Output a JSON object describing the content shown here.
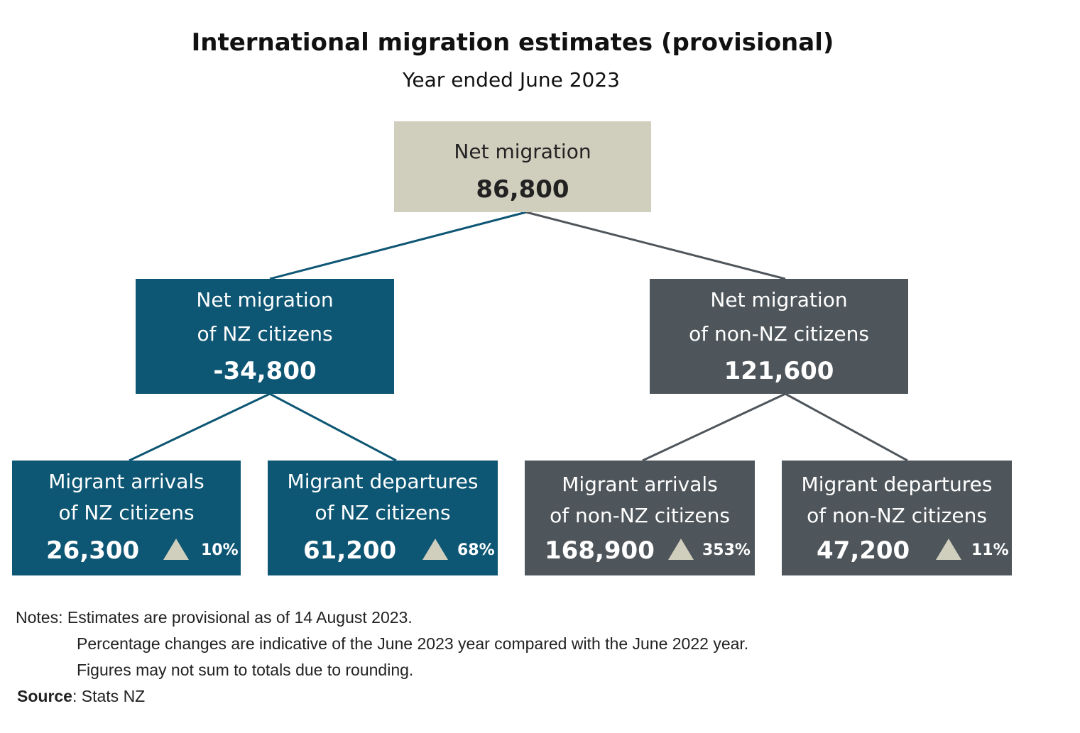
{
  "title": "International migration estimates (provisional)",
  "subtitle": "Year ended June 2023",
  "colors": {
    "root": "#d0cebd",
    "nz": "#0d5674",
    "non_nz": "#4f565b",
    "triangle": "#d0cebd"
  },
  "root": {
    "label": "Net migration",
    "value": "86,800"
  },
  "nz": {
    "label_line1": "Net migration",
    "label_line2": "of NZ citizens",
    "value": "-34,800",
    "arrivals": {
      "line1": "Migrant arrivals",
      "line2": "of NZ citizens",
      "value": "26,300",
      "icon": "up-triangle-icon",
      "change": "10%"
    },
    "departures": {
      "line1": "Migrant departures",
      "line2": "of NZ citizens",
      "value": "61,200",
      "icon": "up-triangle-icon",
      "change": "68%"
    }
  },
  "non_nz": {
    "label_line1": "Net migration",
    "label_line2": "of non-NZ citizens",
    "value": "121,600",
    "arrivals": {
      "line1": "Migrant arrivals",
      "line2": "of non-NZ citizens",
      "value": "168,900",
      "icon": "up-triangle-icon",
      "change": "353%"
    },
    "departures": {
      "line1": "Migrant departures",
      "line2": "of non-NZ citizens",
      "value": "47,200",
      "icon": "up-triangle-icon",
      "change": "11%"
    }
  },
  "notes": {
    "prefix": "Notes:",
    "line1": "Estimates are provisional as of 14 August 2023.",
    "line2": "Percentage changes are indicative of the June 2023 year compared with the June 2022 year.",
    "line3": "Figures may not sum to totals due to rounding."
  },
  "source": {
    "label": "Source",
    "text": ": Stats NZ"
  }
}
